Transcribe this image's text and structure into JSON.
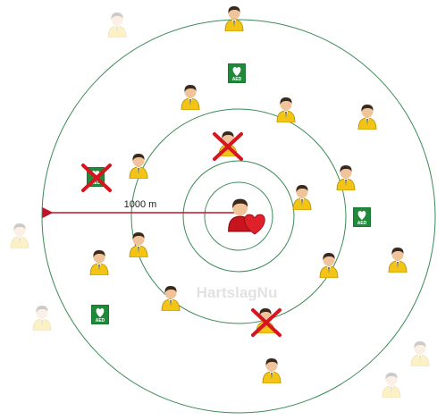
{
  "arrow_label": "1000 m",
  "watermark": "HartslagNu",
  "aed_label": "AED"
}
